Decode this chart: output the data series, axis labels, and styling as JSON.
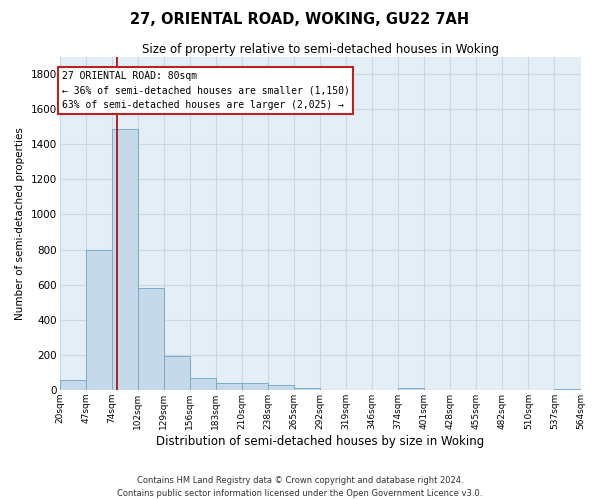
{
  "title": "27, ORIENTAL ROAD, WOKING, GU22 7AH",
  "subtitle": "Size of property relative to semi-detached houses in Woking",
  "xlabel": "Distribution of semi-detached houses by size in Woking",
  "ylabel": "Number of semi-detached properties",
  "bar_values": [
    55,
    800,
    1490,
    580,
    190,
    65,
    40,
    40,
    25,
    10,
    0,
    0,
    0,
    10,
    0,
    0,
    0,
    0,
    0,
    5
  ],
  "bin_edges": [
    20,
    47,
    74,
    101,
    128,
    155,
    182,
    209,
    236,
    263,
    290,
    317,
    344,
    371,
    398,
    425,
    452,
    479,
    506,
    533,
    560
  ],
  "tick_labels": [
    "20sqm",
    "47sqm",
    "74sqm",
    "102sqm",
    "129sqm",
    "156sqm",
    "183sqm",
    "210sqm",
    "238sqm",
    "265sqm",
    "292sqm",
    "319sqm",
    "346sqm",
    "374sqm",
    "401sqm",
    "428sqm",
    "455sqm",
    "482sqm",
    "510sqm",
    "537sqm",
    "564sqm"
  ],
  "bar_color": "#c5d9ea",
  "bar_edgecolor": "#7aadc8",
  "grid_color": "#c8d8e8",
  "bg_color": "#e4eef6",
  "vline_x": 80,
  "vline_color": "#aa0000",
  "annotation_line1": "27 ORIENTAL ROAD: 80sqm",
  "annotation_line2": "← 36% of semi-detached houses are smaller (1,150)",
  "annotation_line3": "63% of semi-detached houses are larger (2,025) →",
  "ylim": [
    0,
    1900
  ],
  "yticks": [
    0,
    200,
    400,
    600,
    800,
    1000,
    1200,
    1400,
    1600,
    1800
  ],
  "footer_line1": "Contains HM Land Registry data © Crown copyright and database right 2024.",
  "footer_line2": "Contains public sector information licensed under the Open Government Licence v3.0."
}
